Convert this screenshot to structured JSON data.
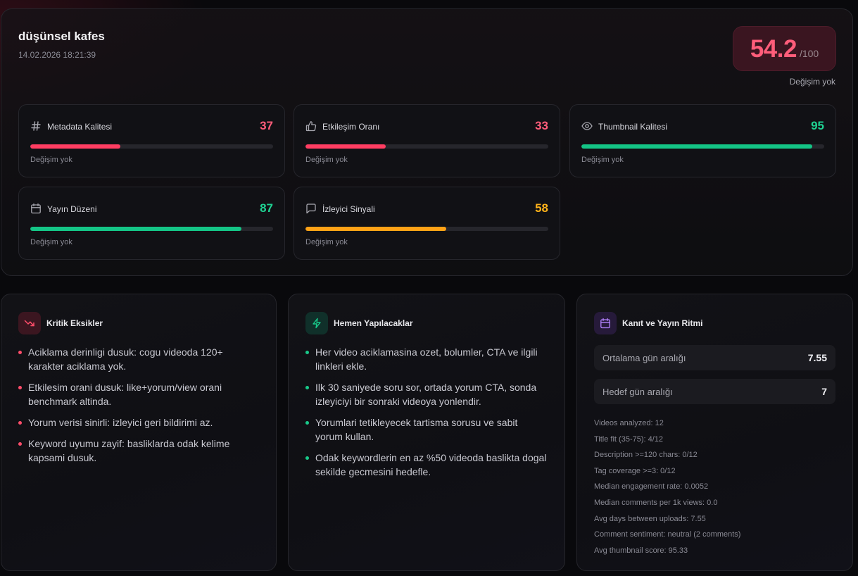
{
  "header": {
    "title": "düşünsel kafes",
    "timestamp": "14.02.2026 18:21:39",
    "score": "54.2",
    "score_max": "/100",
    "score_change": "Değişim yok"
  },
  "metrics": [
    {
      "label": "Metadata Kalitesi",
      "value": "37",
      "fill": 0.37,
      "color": "#ff5d7a",
      "bar": "#ff3d62",
      "change": "Değişim yok",
      "icon": "hash-icon"
    },
    {
      "label": "Etkileşim Oranı",
      "value": "33",
      "fill": 0.33,
      "color": "#ff5d7a",
      "bar": "#ff3d62",
      "change": "Değişim yok",
      "icon": "thumbs-up-icon"
    },
    {
      "label": "Thumbnail Kalitesi",
      "value": "95",
      "fill": 0.95,
      "color": "#1fd393",
      "bar": "#14c586",
      "change": "Değişim yok",
      "icon": "eye-icon"
    },
    {
      "label": "Yayın Düzeni",
      "value": "87",
      "fill": 0.87,
      "color": "#1fd393",
      "bar": "#14c586",
      "change": "Değişim yok",
      "icon": "calendar-icon"
    },
    {
      "label": "İzleyici Sinyali",
      "value": "58",
      "fill": 0.58,
      "color": "#ffb31a",
      "bar": "#ffa216",
      "change": "Değişim yok",
      "icon": "message-icon"
    }
  ],
  "critical": {
    "title": "Kritik Eksikler",
    "icon": "trending-down-icon",
    "items": [
      "Aciklama derinligi dusuk: cogu videoda 120+ karakter aciklama yok.",
      "Etkilesim orani dusuk: like+yorum/view orani benchmark altinda.",
      "Yorum verisi sinirli: izleyici geri bildirimi az.",
      "Keyword uyumu zayif: basliklarda odak kelime kapsami dusuk."
    ]
  },
  "actions": {
    "title": "Hemen Yapılacaklar",
    "icon": "lightning-icon",
    "items": [
      "Her video aciklamasina ozet, bolumler, CTA ve ilgili linkleri ekle.",
      "Ilk 30 saniyede soru sor, ortada yorum CTA, sonda izleyiciyi bir sonraki videoya yonlendir.",
      "Yorumlari tetikleyecek tartisma sorusu ve sabit yorum kullan.",
      "Odak keywordlerin en az %50 videoda baslikta dogal sekilde gecmesini hedefle."
    ]
  },
  "evidence": {
    "title": "Kanıt ve Yayın Ritmi",
    "icon": "calendar-icon",
    "stats": [
      {
        "label": "Ortalama gün aralığı",
        "value": "7.55"
      },
      {
        "label": "Hedef gün aralığı",
        "value": "7"
      }
    ],
    "lines": [
      "Videos analyzed: 12",
      "Title fit (35-75): 4/12",
      "Description >=120 chars: 0/12",
      "Tag coverage >=3: 0/12",
      "Median engagement rate: 0.0052",
      "Median comments per 1k views: 0.0",
      "Avg days between uploads: 7.55",
      "Comment sentiment: neutral (2 comments)",
      "Avg thumbnail score: 95.33"
    ]
  }
}
